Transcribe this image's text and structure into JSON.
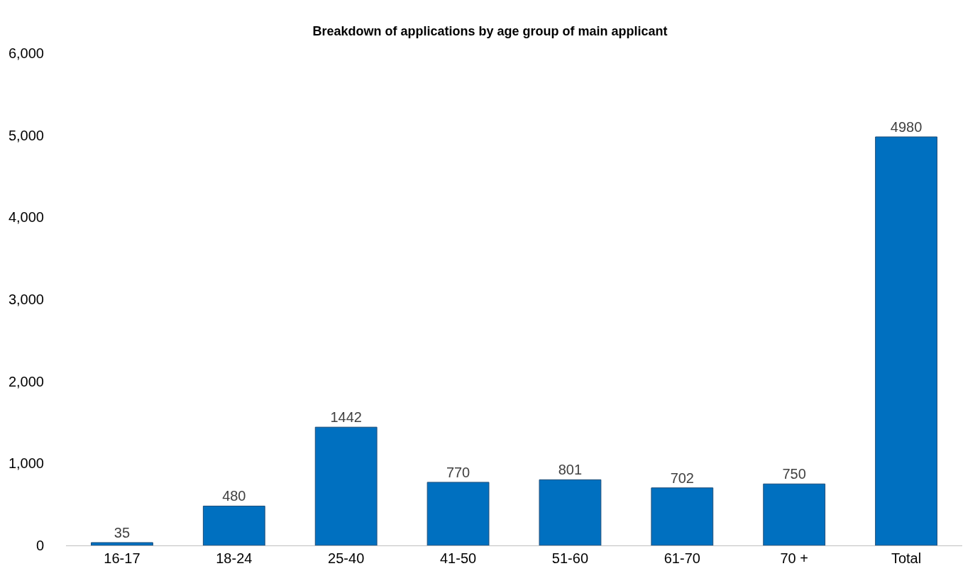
{
  "chart_data": {
    "type": "bar",
    "title": "Breakdown of applications by age group of main applicant",
    "categories": [
      "16-17",
      "18-24",
      "25-40",
      "41-50",
      "51-60",
      "61-70",
      "70 +",
      "Total"
    ],
    "values": [
      35,
      480,
      1442,
      770,
      801,
      702,
      750,
      4980
    ],
    "color": "#0070c0",
    "data_labels": true,
    "ylim": [
      0,
      6000
    ],
    "yticks": [
      0,
      {
        "value": 1000,
        "label": "1,000"
      },
      {
        "value": 2000,
        "label": "2,000"
      },
      {
        "value": 3000,
        "label": "3,000"
      },
      {
        "value": 4000,
        "label": "4,000"
      },
      {
        "value": 5000,
        "label": "5,000"
      },
      {
        "value": 6000,
        "label": "6,000"
      }
    ],
    "grid": false
  }
}
